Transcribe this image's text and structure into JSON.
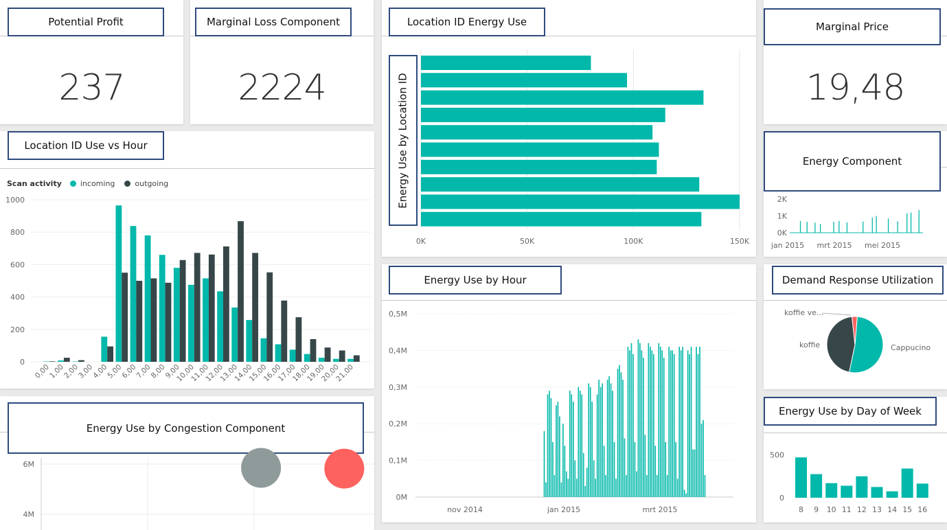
{
  "colors": {
    "teal": "#01b8aa",
    "dark": "#374649",
    "red": "#fd625e",
    "gray": "#8f9a9b",
    "header_border": "#2e4a7d"
  },
  "potential_profit": {
    "title": "Potential Profit",
    "value": "237"
  },
  "marginal_loss": {
    "title": "Marginal Loss Component",
    "value": "2224"
  },
  "marginal_price": {
    "title": "Marginal Price",
    "value": "19,48"
  },
  "location_energy": {
    "title": "Location ID Energy Use"
  },
  "location_hour": {
    "title": "Location ID Use vs Hour"
  },
  "energy_component": {
    "title": "Energy Component"
  },
  "demand_response": {
    "title": "Demand Response Utilization"
  },
  "energy_hour": {
    "title": "Energy Use by Hour"
  },
  "day_of_week": {
    "title": "Energy Use by Day of Week"
  },
  "congestion": {
    "title": "Energy Use by Congestion Component"
  },
  "chart_data": [
    {
      "id": "location-id-energy-use",
      "type": "bar",
      "orientation": "horizontal",
      "ylabel": "Energy Use by Location ID",
      "values": [
        80000,
        97000,
        133000,
        115000,
        109000,
        112000,
        111000,
        131000,
        150000,
        132000
      ],
      "xlim": [
        0,
        150000
      ],
      "xticks": [
        "0K",
        "50K",
        "100K",
        "150K"
      ],
      "color": "#01b8aa"
    },
    {
      "id": "location-id-use-vs-hour",
      "type": "bar",
      "legend_title": "Scan activity",
      "legend_position": "top-left",
      "categories": [
        "0,00",
        "1,00",
        "2,00",
        "3,00",
        "4,00",
        "5,00",
        "6,00",
        "7,00",
        "8,00",
        "9,00",
        "10,00",
        "11,00",
        "12,00",
        "13,00",
        "14,00",
        "15,00",
        "16,00",
        "17,00",
        "18,00",
        "19,00",
        "20,00",
        "21,00"
      ],
      "series": [
        {
          "name": "incoming",
          "color": "#01b8aa",
          "values": [
            2,
            8,
            2,
            0,
            155,
            965,
            838,
            780,
            660,
            580,
            475,
            515,
            435,
            335,
            258,
            145,
            108,
            75,
            48,
            25,
            18,
            18
          ]
        },
        {
          "name": "outgoing",
          "color": "#374649",
          "values": [
            3,
            25,
            10,
            0,
            95,
            550,
            500,
            515,
            488,
            628,
            672,
            662,
            712,
            868,
            672,
            552,
            378,
            275,
            140,
            88,
            70,
            40
          ]
        }
      ],
      "ylim": [
        0,
        1000
      ],
      "yticks": [
        "0",
        "200",
        "400",
        "600",
        "800",
        "1000"
      ]
    },
    {
      "id": "energy-component",
      "type": "line",
      "ylim": [
        0,
        2000
      ],
      "yticks": [
        "0K",
        "1K",
        "2K"
      ],
      "xticks": [
        "jan 2015",
        "mrt 2015",
        "mei 2015"
      ],
      "spikes": [
        {
          "x": 0.08,
          "v": 700
        },
        {
          "x": 0.13,
          "v": 650
        },
        {
          "x": 0.19,
          "v": 600
        },
        {
          "x": 0.23,
          "v": 520
        },
        {
          "x": 0.33,
          "v": 650
        },
        {
          "x": 0.37,
          "v": 700
        },
        {
          "x": 0.43,
          "v": 620
        },
        {
          "x": 0.55,
          "v": 660
        },
        {
          "x": 0.62,
          "v": 900
        },
        {
          "x": 0.65,
          "v": 1000
        },
        {
          "x": 0.74,
          "v": 850
        },
        {
          "x": 0.81,
          "v": 680
        },
        {
          "x": 0.88,
          "v": 1150
        },
        {
          "x": 0.91,
          "v": 1200
        },
        {
          "x": 0.97,
          "v": 1350
        }
      ],
      "color": "#01b8aa"
    },
    {
      "id": "demand-response-utilization",
      "type": "pie",
      "slices": [
        {
          "label": "Cappucino",
          "value": 52,
          "color": "#01b8aa"
        },
        {
          "label": "koffie",
          "value": 45,
          "color": "#374649"
        },
        {
          "label": "koffie ve...",
          "value": 3,
          "color": "#fd625e"
        }
      ]
    },
    {
      "id": "energy-use-by-hour",
      "type": "bar",
      "yticks": [
        "0M",
        "0,1M",
        "0,2M",
        "0,3M",
        "0,4M",
        "0,5M"
      ],
      "ylim": [
        0,
        500000
      ],
      "xticks": [
        "nov 2014",
        "jan 2015",
        "mrt 2015"
      ],
      "start_index": 75,
      "total_points": 186,
      "values": [
        180000,
        40000,
        280000,
        290000,
        270000,
        150000,
        60000,
        250000,
        260000,
        220000,
        40000,
        200000,
        140000,
        70000,
        50000,
        290000,
        280000,
        260000,
        100000,
        50000,
        300000,
        290000,
        280000,
        120000,
        30000,
        80000,
        310000,
        300000,
        260000,
        100000,
        50000,
        280000,
        320000,
        300000,
        310000,
        140000,
        60000,
        320000,
        330000,
        310000,
        290000,
        150000,
        50000,
        350000,
        360000,
        340000,
        320000,
        160000,
        60000,
        410000,
        400000,
        420000,
        390000,
        150000,
        70000,
        430000,
        420000,
        400000,
        380000,
        170000,
        60000,
        420000,
        410000,
        400000,
        390000,
        140000,
        60000,
        420000,
        410000,
        400000,
        380000,
        150000,
        60000,
        410000,
        400000,
        400000,
        390000,
        150000,
        50000,
        410000,
        400000,
        410000,
        20000,
        10000,
        400000,
        390000,
        410000,
        130000,
        130000,
        410000,
        390000,
        410000,
        200000,
        210000,
        60000
      ],
      "color": "#01b8aa"
    },
    {
      "id": "energy-use-by-day-of-week",
      "type": "bar",
      "categories": [
        "8",
        "9",
        "10",
        "11",
        "12",
        "13",
        "14",
        "15",
        "16"
      ],
      "values": [
        470,
        275,
        170,
        140,
        250,
        125,
        75,
        340,
        165
      ],
      "ylim": [
        0,
        600
      ],
      "yticks": [
        "0",
        "500"
      ],
      "color": "#01b8aa"
    },
    {
      "id": "energy-use-by-congestion-component",
      "type": "scatter",
      "yticks": [
        "4M",
        "6M"
      ],
      "points": [
        {
          "x": 0.66,
          "y": 5.85,
          "color": "#8f9a9b"
        },
        {
          "x": 0.91,
          "y": 5.82,
          "color": "#fd625e"
        }
      ]
    }
  ]
}
